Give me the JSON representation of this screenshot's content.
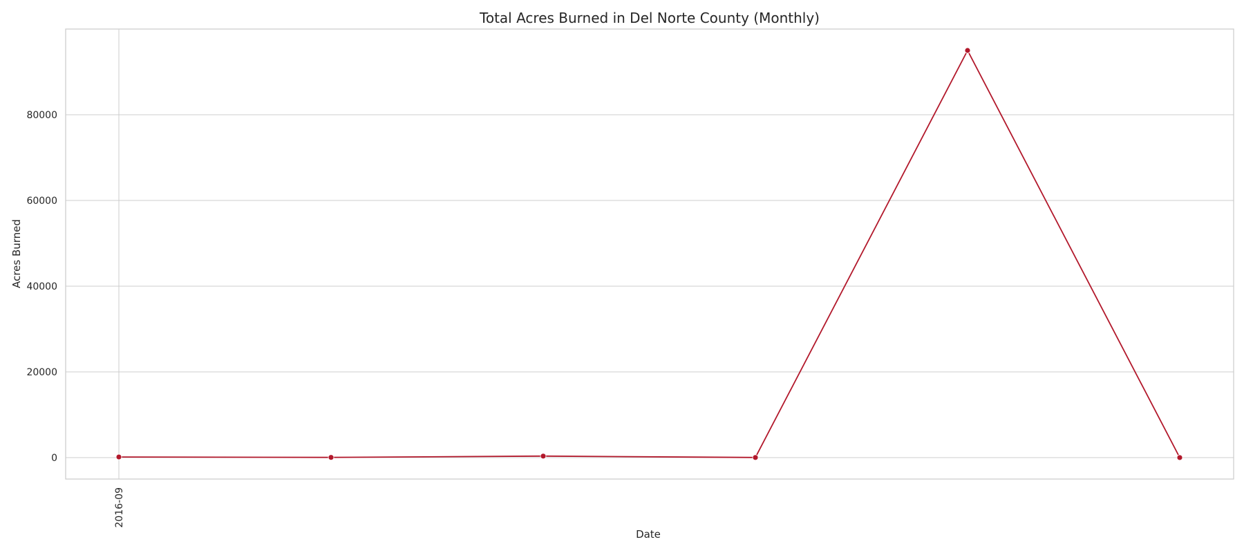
{
  "chart_data": {
    "type": "line",
    "title": "Total Acres Burned in Del Norte County (Monthly)",
    "xlabel": "Date",
    "ylabel": "Acres Burned",
    "x_tick_labels": [
      "2016-09"
    ],
    "y_ticks": [
      0,
      20000,
      40000,
      60000,
      80000
    ],
    "ylim": [
      -5000,
      100000
    ],
    "grid": true,
    "color": "#b2182b",
    "series": [
      {
        "values": [
          150,
          50,
          350,
          30,
          95000,
          10
        ]
      }
    ]
  }
}
